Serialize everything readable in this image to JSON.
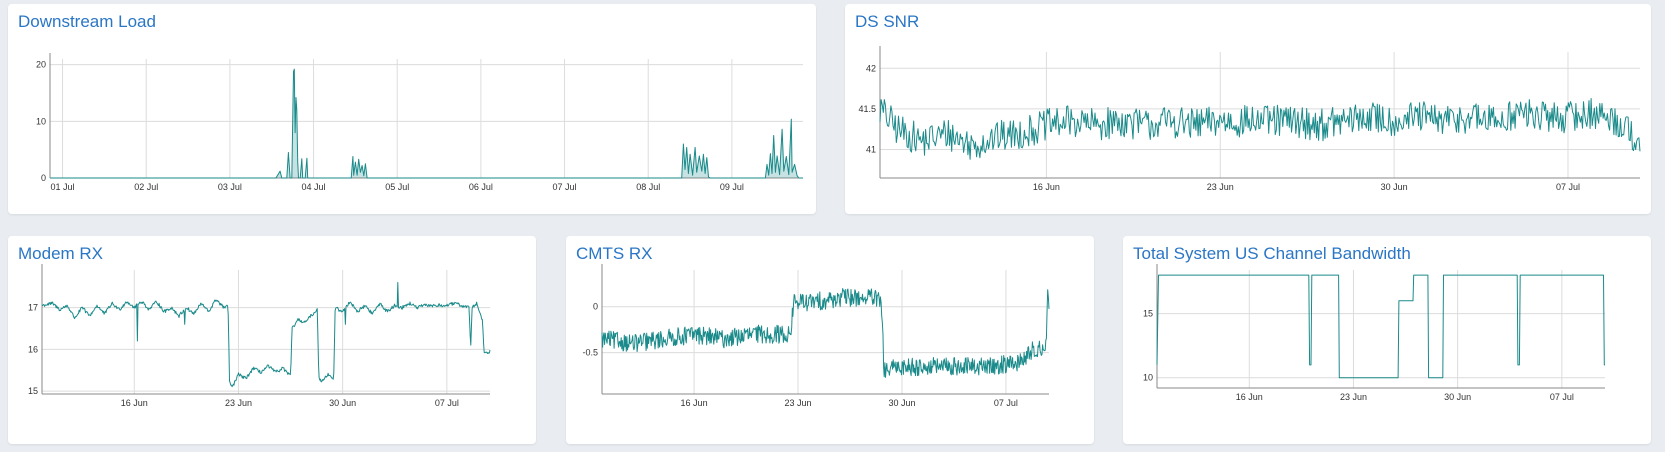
{
  "colors": {
    "line": "#1a8a8a",
    "grid": "#dcdcdc",
    "axis": "#888888",
    "title": "#2a76c6",
    "background": "#e9edf1"
  },
  "chart_data": [
    {
      "id": "dsload",
      "type": "area",
      "title": "Downstream Load",
      "xlabel": "",
      "ylabel": "",
      "x_ticks": [
        "01 Jul",
        "02 Jul",
        "03 Jul",
        "04 Jul",
        "05 Jul",
        "06 Jul",
        "07 Jul",
        "08 Jul",
        "09 Jul"
      ],
      "y_ticks": [
        "0",
        "10",
        "20"
      ],
      "xlim": [
        0.85,
        9.85
      ],
      "ylim": [
        0,
        21
      ],
      "grid": true,
      "series": [
        {
          "values": [
            [
              0.85,
              0
            ],
            [
              3.55,
              0
            ],
            [
              3.6,
              1.2
            ],
            [
              3.62,
              0
            ],
            [
              3.68,
              0
            ],
            [
              3.7,
              4.5
            ],
            [
              3.72,
              0
            ],
            [
              3.74,
              0
            ],
            [
              3.76,
              18.8
            ],
            [
              3.77,
              19.2
            ],
            [
              3.78,
              8
            ],
            [
              3.79,
              14.2
            ],
            [
              3.8,
              12
            ],
            [
              3.81,
              3
            ],
            [
              3.82,
              0
            ],
            [
              3.84,
              0
            ],
            [
              3.86,
              3.4
            ],
            [
              3.87,
              0
            ],
            [
              3.9,
              0
            ],
            [
              3.92,
              3.5
            ],
            [
              3.93,
              0
            ],
            [
              4.45,
              0
            ],
            [
              4.47,
              3.8
            ],
            [
              4.48,
              0.5
            ],
            [
              4.5,
              2.8
            ],
            [
              4.52,
              0.5
            ],
            [
              4.54,
              3.3
            ],
            [
              4.56,
              1
            ],
            [
              4.58,
              2.2
            ],
            [
              4.6,
              0.4
            ],
            [
              4.62,
              2.5
            ],
            [
              4.64,
              0
            ],
            [
              8.4,
              0
            ],
            [
              8.42,
              6
            ],
            [
              8.44,
              1.5
            ],
            [
              8.46,
              5.4
            ],
            [
              8.48,
              0.8
            ],
            [
              8.5,
              4.2
            ],
            [
              8.53,
              0.5
            ],
            [
              8.56,
              5.4
            ],
            [
              8.58,
              1
            ],
            [
              8.61,
              3.9
            ],
            [
              8.64,
              1.2
            ],
            [
              8.66,
              4.2
            ],
            [
              8.68,
              0.8
            ],
            [
              8.7,
              3.6
            ],
            [
              8.72,
              0.2
            ],
            [
              8.74,
              0
            ],
            [
              9.4,
              0
            ],
            [
              9.42,
              2.4
            ],
            [
              9.44,
              0.5
            ],
            [
              9.46,
              4.3
            ],
            [
              9.48,
              0.8
            ],
            [
              9.5,
              7.5
            ],
            [
              9.52,
              1
            ],
            [
              9.54,
              3.9
            ],
            [
              9.57,
              0.6
            ],
            [
              9.6,
              8.6
            ],
            [
              9.62,
              1.2
            ],
            [
              9.65,
              3.8
            ],
            [
              9.68,
              0.6
            ],
            [
              9.71,
              10.4
            ],
            [
              9.72,
              1
            ],
            [
              9.75,
              2.4
            ],
            [
              9.78,
              0.4
            ],
            [
              9.8,
              0
            ],
            [
              9.85,
              0
            ]
          ]
        }
      ]
    },
    {
      "id": "dssnr",
      "type": "line",
      "title": "DS SNR",
      "xlabel": "",
      "ylabel": "",
      "x_ticks": [
        "16 Jun",
        "23 Jun",
        "30 Jun",
        "07 Jul"
      ],
      "x_tick_days": [
        16,
        23,
        30,
        37
      ],
      "y_ticks": [
        "41",
        "41.5",
        "42"
      ],
      "y_tick_values": [
        41,
        41.5,
        42
      ],
      "xlim": [
        9.3,
        39.9
      ],
      "ylim": [
        40.65,
        42.2
      ],
      "grid": true,
      "series": [
        {
          "values": [
            [
              9.3,
              41.5
            ],
            [
              10,
              41.25
            ],
            [
              11,
              41.1
            ],
            [
              12,
              41.2
            ],
            [
              13,
              41.05
            ],
            [
              14,
              41.15
            ],
            [
              15,
              41.2
            ],
            [
              16,
              41.3
            ],
            [
              17,
              41.35
            ],
            [
              18,
              41.3
            ],
            [
              19,
              41.35
            ],
            [
              20,
              41.3
            ],
            [
              21,
              41.35
            ],
            [
              22,
              41.3
            ],
            [
              23,
              41.35
            ],
            [
              24,
              41.35
            ],
            [
              25,
              41.35
            ],
            [
              26,
              41.35
            ],
            [
              27,
              41.3
            ],
            [
              28,
              41.35
            ],
            [
              29,
              41.4
            ],
            [
              30,
              41.35
            ],
            [
              31,
              41.4
            ],
            [
              32,
              41.35
            ],
            [
              33,
              41.4
            ],
            [
              34,
              41.35
            ],
            [
              35,
              41.45
            ],
            [
              36,
              41.4
            ],
            [
              37,
              41.4
            ],
            [
              38,
              41.45
            ],
            [
              39,
              41.35
            ],
            [
              39.9,
              41.1
            ]
          ],
          "noise": 0.2
        }
      ]
    },
    {
      "id": "mrx",
      "type": "line",
      "title": "Modem RX",
      "xlabel": "",
      "ylabel": "",
      "x_ticks": [
        "16 Jun",
        "23 Jun",
        "30 Jun",
        "07 Jul"
      ],
      "x_tick_days": [
        16,
        23,
        30,
        37
      ],
      "y_ticks": [
        "15",
        "16",
        "17"
      ],
      "y_tick_values": [
        15,
        16,
        17
      ],
      "xlim": [
        9.8,
        39.9
      ],
      "ylim": [
        14.93,
        17.9
      ],
      "grid": true,
      "series": [
        {
          "values": [
            [
              9.8,
              17.05
            ],
            [
              10.5,
              17.1
            ],
            [
              11,
              16.95
            ],
            [
              11.5,
              17.05
            ],
            [
              12,
              16.75
            ],
            [
              12.5,
              17.0
            ],
            [
              13,
              16.8
            ],
            [
              13.5,
              17.05
            ],
            [
              14,
              16.85
            ],
            [
              14.5,
              17.1
            ],
            [
              15,
              16.95
            ],
            [
              15.5,
              17.15
            ],
            [
              16,
              17.0
            ],
            [
              16.5,
              17.15
            ],
            [
              17,
              16.95
            ],
            [
              17.5,
              17.15
            ],
            [
              18,
              16.9
            ],
            [
              18.5,
              17.0
            ],
            [
              19,
              16.8
            ],
            [
              19.5,
              17.0
            ],
            [
              20,
              16.85
            ],
            [
              20.5,
              17.1
            ],
            [
              21,
              16.9
            ],
            [
              21.5,
              17.2
            ],
            [
              22,
              17.0
            ],
            [
              22.3,
              17.05
            ],
            [
              22.4,
              15.2
            ],
            [
              22.6,
              15.1
            ],
            [
              23,
              15.4
            ],
            [
              23.5,
              15.3
            ],
            [
              24,
              15.55
            ],
            [
              24.5,
              15.45
            ],
            [
              25,
              15.6
            ],
            [
              25.5,
              15.45
            ],
            [
              26,
              15.55
            ],
            [
              26.5,
              15.35
            ],
            [
              26.6,
              16.5
            ],
            [
              27,
              16.7
            ],
            [
              27.5,
              16.65
            ],
            [
              28,
              16.85
            ],
            [
              28.3,
              16.95
            ],
            [
              28.4,
              15.3
            ],
            [
              28.6,
              15.25
            ],
            [
              29,
              15.4
            ],
            [
              29.4,
              15.3
            ],
            [
              29.5,
              17.0
            ],
            [
              30,
              16.9
            ],
            [
              30.5,
              17.15
            ],
            [
              31,
              16.9
            ],
            [
              31.5,
              17.05
            ],
            [
              32,
              16.85
            ],
            [
              32.5,
              17.1
            ],
            [
              33,
              16.9
            ],
            [
              33.5,
              17.05
            ],
            [
              34,
              17.0
            ],
            [
              34.5,
              17.1
            ],
            [
              35,
              17.0
            ],
            [
              35.5,
              17.05
            ],
            [
              36,
              17.05
            ],
            [
              36.5,
              17.05
            ],
            [
              37,
              17.05
            ],
            [
              37.5,
              17.1
            ],
            [
              38,
              17.05
            ],
            [
              38.5,
              17.0
            ],
            [
              38.6,
              16.0
            ],
            [
              38.7,
              17.0
            ],
            [
              39,
              17.1
            ],
            [
              39.4,
              16.7
            ],
            [
              39.5,
              15.9
            ],
            [
              39.9,
              15.95
            ]
          ],
          "spikes": [
            [
              16.2,
              16.2
            ],
            [
              19.4,
              16.6
            ],
            [
              30.2,
              16.6
            ],
            [
              33.7,
              17.6
            ]
          ],
          "noise": 0.04
        }
      ]
    },
    {
      "id": "cmts",
      "type": "line",
      "title": "CMTS RX",
      "xlabel": "",
      "ylabel": "",
      "x_ticks": [
        "16 Jun",
        "23 Jun",
        "30 Jun",
        "07 Jul"
      ],
      "x_tick_days": [
        16,
        23,
        30,
        37
      ],
      "y_ticks": [
        "-0.5",
        "0"
      ],
      "y_tick_values": [
        -0.5,
        0
      ],
      "xlim": [
        9.8,
        39.9
      ],
      "ylim": [
        -0.95,
        0.4
      ],
      "grid": true,
      "series": [
        {
          "values": [
            [
              9.8,
              -0.35
            ],
            [
              12,
              -0.4
            ],
            [
              14,
              -0.35
            ],
            [
              16,
              -0.3
            ],
            [
              18,
              -0.35
            ],
            [
              20,
              -0.3
            ],
            [
              22,
              -0.3
            ],
            [
              22.5,
              -0.3
            ],
            [
              22.7,
              0.05
            ],
            [
              24,
              0.05
            ],
            [
              26,
              0.1
            ],
            [
              28,
              0.1
            ],
            [
              28.6,
              0.05
            ],
            [
              28.8,
              -0.7
            ],
            [
              30,
              -0.65
            ],
            [
              32,
              -0.65
            ],
            [
              34,
              -0.65
            ],
            [
              36,
              -0.65
            ],
            [
              38,
              -0.6
            ],
            [
              39,
              -0.45
            ],
            [
              39.7,
              -0.45
            ],
            [
              39.8,
              0.2
            ],
            [
              39.9,
              -0.05
            ]
          ],
          "noise": 0.1
        }
      ]
    },
    {
      "id": "usbw",
      "type": "line",
      "title": "Total System US Channel Bandwidth",
      "xlabel": "",
      "ylabel": "",
      "x_ticks": [
        "16 Jun",
        "23 Jun",
        "30 Jun",
        "07 Jul"
      ],
      "x_tick_days": [
        16,
        23,
        30,
        37
      ],
      "y_ticks": [
        "10",
        "15"
      ],
      "y_tick_values": [
        10,
        15
      ],
      "xlim": [
        9.8,
        39.9
      ],
      "ylim": [
        9.2,
        18.4
      ],
      "grid": true,
      "series": [
        {
          "values": [
            [
              9.8,
              11.0
            ],
            [
              9.9,
              18.0
            ],
            [
              20.0,
              18.0
            ],
            [
              20.05,
              11.0
            ],
            [
              20.15,
              11.0
            ],
            [
              20.2,
              18.0
            ],
            [
              22.0,
              18.0
            ],
            [
              22.05,
              10.0
            ],
            [
              26.0,
              10.0
            ],
            [
              26.05,
              16.0
            ],
            [
              27.0,
              16.0
            ],
            [
              27.05,
              18.0
            ],
            [
              28.0,
              18.0
            ],
            [
              28.05,
              10.0
            ],
            [
              29.0,
              10.0
            ],
            [
              29.05,
              18.0
            ],
            [
              34.0,
              18.0
            ],
            [
              34.05,
              11.0
            ],
            [
              34.15,
              11.0
            ],
            [
              34.2,
              18.0
            ],
            [
              39.8,
              18.0
            ],
            [
              39.85,
              11.0
            ],
            [
              39.9,
              11.0
            ]
          ]
        }
      ]
    }
  ]
}
